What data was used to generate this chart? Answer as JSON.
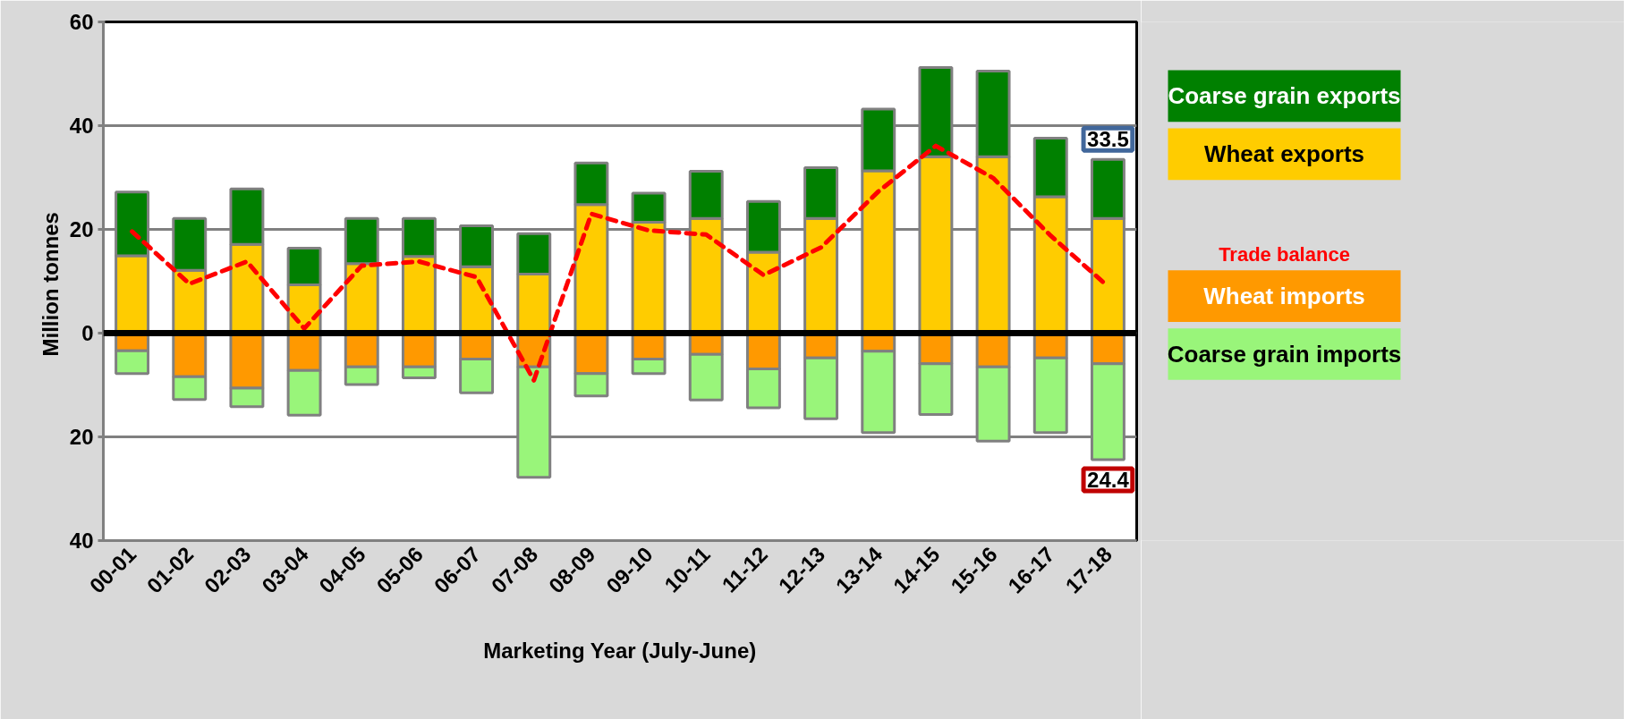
{
  "chart_data": {
    "type": "bar",
    "stacked": true,
    "xlabel": "Marketing Year (July-June)",
    "ylabel": "Million  tonnes",
    "categories": [
      "00-01",
      "01-02",
      "02-03",
      "03-04",
      "04-05",
      "05-06",
      "06-07",
      "07-08",
      "08-09",
      "09-10",
      "10-11",
      "11-12",
      "12-13",
      "13-14",
      "14-15",
      "15-16",
      "16-17",
      "17-18"
    ],
    "series": [
      {
        "name": "Wheat exports",
        "color": "#ffcc00",
        "values": [
          14.9,
          12.1,
          17.1,
          9.3,
          13.4,
          14.8,
          12.8,
          11.4,
          24.8,
          21.4,
          22.1,
          15.6,
          22.1,
          31.3,
          34.0,
          34.0,
          26.3,
          22.1
        ]
      },
      {
        "name": "Coarse grain exports",
        "color": "#008000",
        "values": [
          12.3,
          10.0,
          10.7,
          7.1,
          8.7,
          7.3,
          7.9,
          7.8,
          8.0,
          5.6,
          9.1,
          9.8,
          9.8,
          11.9,
          17.2,
          16.5,
          11.3,
          11.4
        ]
      },
      {
        "name": "Wheat imports",
        "color": "#ff9900",
        "values": [
          -3.4,
          -8.4,
          -10.6,
          -7.2,
          -6.5,
          -6.5,
          -5.0,
          -6.5,
          -7.8,
          -5.0,
          -4.1,
          -6.9,
          -4.8,
          -3.5,
          -5.9,
          -6.5,
          -4.8,
          -5.9
        ]
      },
      {
        "name": "Coarse grain imports",
        "color": "#99f57a",
        "values": [
          -4.4,
          -4.4,
          -3.6,
          -8.6,
          -3.4,
          -2.1,
          -6.5,
          -21.3,
          -4.3,
          -2.8,
          -8.8,
          -7.5,
          -11.7,
          -15.7,
          -9.8,
          -14.3,
          -14.4,
          -18.5
        ]
      },
      {
        "name": "Trade balance",
        "type": "line",
        "color": "#ff0000",
        "line_style": "dashed",
        "marker": "none",
        "values": [
          19.6,
          9.5,
          13.8,
          0.9,
          13.0,
          13.8,
          10.8,
          -9.1,
          23.0,
          19.8,
          19.0,
          11.2,
          16.5,
          27.3,
          36.1,
          29.9,
          18.8,
          9.0
        ]
      }
    ],
    "ylim": [
      -40,
      60
    ],
    "yticks": [
      {
        "value": -40,
        "label": "40"
      },
      {
        "value": -20,
        "label": "20"
      },
      0,
      20,
      40,
      60
    ],
    "grid": "y",
    "legend": "right",
    "ref_lines": [
      {
        "axis": "y",
        "value": 0,
        "color": "#000000"
      }
    ],
    "annotations": [
      {
        "text": "33.5",
        "x": "17-18",
        "y": 33.5
      },
      {
        "text": "24.4",
        "x": "17-18",
        "y": -24.4
      }
    ]
  }
}
